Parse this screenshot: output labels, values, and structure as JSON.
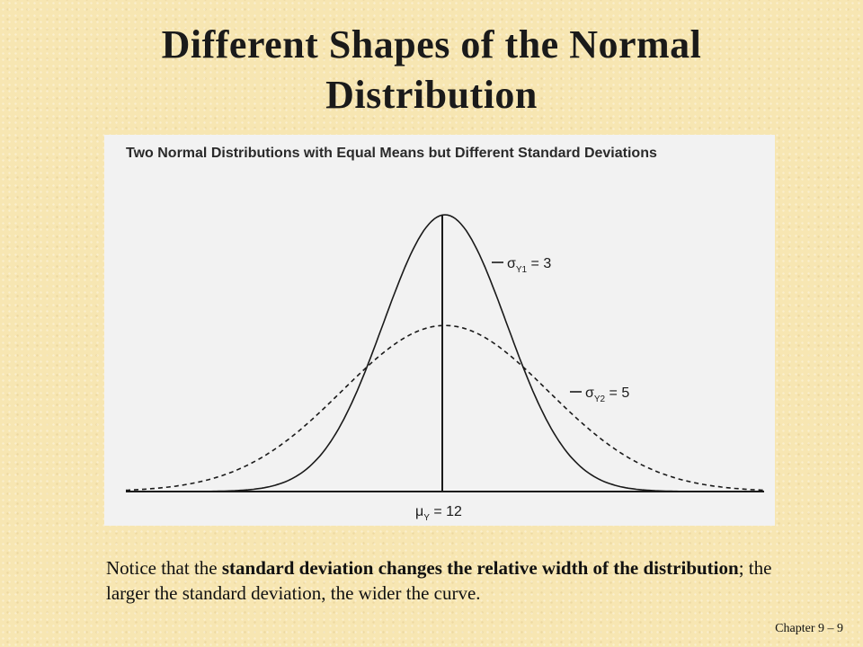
{
  "slide": {
    "title": "Different Shapes of the Normal Distribution",
    "footer": "Chapter 9 – 9"
  },
  "figure": {
    "title": "Two Normal Distributions with Equal Means but Different Standard Deviations"
  },
  "chart_data": {
    "type": "line",
    "title": "Two Normal Distributions with Equal Means but Different Standard Deviations",
    "mean_label": "μY = 12",
    "mean": 12,
    "series": [
      {
        "name": "σY1 = 3",
        "sigma": 3,
        "line_style": "solid"
      },
      {
        "name": "σY2 = 5",
        "sigma": 5,
        "line_style": "dashed"
      }
    ],
    "annotations": [
      {
        "symbol": "σ",
        "subscript": "Y1",
        "text": " = 3",
        "series": "σY1 = 3"
      },
      {
        "symbol": "σ",
        "subscript": "Y2",
        "text": " = 5",
        "series": "σY2 = 5"
      },
      {
        "symbol": "μ",
        "subscript": "Y",
        "text": " = 12",
        "series": "mean"
      }
    ],
    "grid": false,
    "legend": "inline labels"
  },
  "caption": {
    "part1": "Notice that the ",
    "bold1": "standard deviation changes the relative width of the distribution",
    "part2": "; the larger the standard deviation, the wider the curve."
  },
  "colors": {
    "background": "#f7e6b2",
    "figure_bg": "#f2f2f2",
    "ink": "#1a1a1a"
  }
}
